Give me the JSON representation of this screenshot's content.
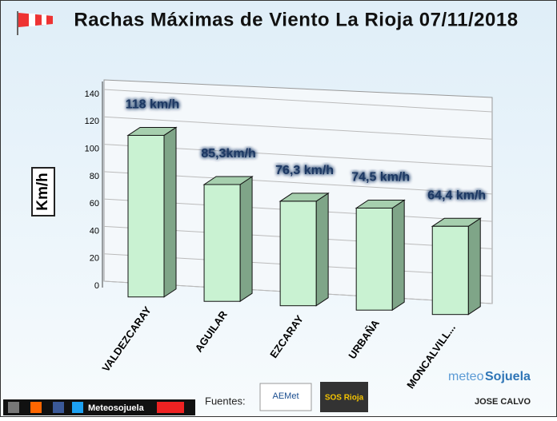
{
  "chart_data": {
    "type": "bar3d",
    "title": "Rachas Máximas de Viento La Rioja 07/11/2018",
    "y_label": "Km/h",
    "categories": [
      "VALDEZCARAY",
      "AGUILAR",
      "EZCARAY",
      "URBAÑA",
      "MONCALVILL..."
    ],
    "values": [
      118,
      85.3,
      76.3,
      74.5,
      64.4
    ],
    "value_labels": [
      "118 km/h",
      "85,3km/h",
      "76,3 km/h",
      "74,5 km/h",
      "64,4 km/h"
    ],
    "color": "#c9f2d2",
    "ylim": [
      0,
      140
    ],
    "yticks": [
      0,
      20,
      40,
      60,
      80,
      100,
      120,
      140
    ],
    "grid": true
  },
  "footer": {
    "social": "Meteosojuela",
    "sources_label": "Fuentes:",
    "logos": [
      "AEMet",
      "SOS Rioja"
    ],
    "brand_a": "meteo",
    "brand_b": "Sojuela",
    "author": "JOSE CALVO"
  }
}
